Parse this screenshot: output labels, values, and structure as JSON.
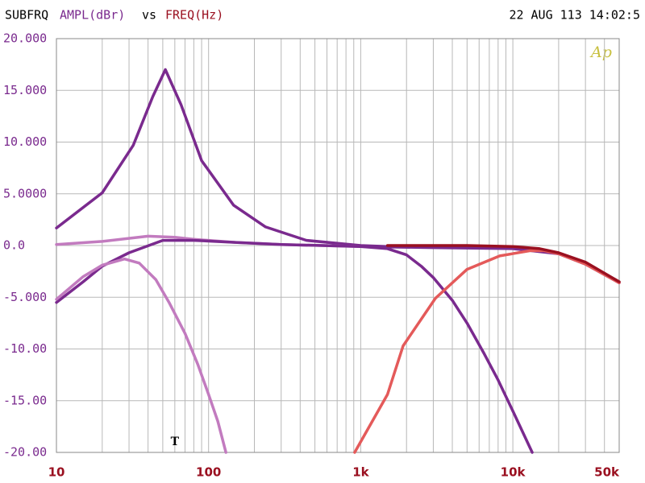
{
  "chart_data": {
    "type": "line",
    "title": "SUBFRQ",
    "ylabel": "AMPL(dBr)",
    "title_sep": "vs",
    "xlabel": "FREQ(Hz)",
    "timestamp": "22 AUG 113 14:02:5",
    "logo": "Ap",
    "annotation": {
      "text": "T",
      "x": 60,
      "y": -19.6
    },
    "xscale": "log",
    "grid": true,
    "xlim": [
      10,
      50000
    ],
    "ylim": [
      -20,
      20
    ],
    "xticks": [
      10,
      100,
      {
        "value": 1000,
        "label": "1k"
      },
      {
        "value": 10000,
        "label": "10k"
      },
      {
        "value": 50000,
        "label": "50k"
      }
    ],
    "xminorticks": [
      20,
      30,
      40,
      50,
      60,
      70,
      80,
      90,
      200,
      300,
      400,
      500,
      600,
      700,
      800,
      900,
      2000,
      3000,
      4000,
      5000,
      6000,
      7000,
      8000,
      9000,
      20000,
      30000,
      40000
    ],
    "yticks": [
      {
        "value": 20,
        "label": "20.000"
      },
      {
        "value": 15,
        "label": "15.000"
      },
      {
        "value": 10,
        "label": "10.000"
      },
      {
        "value": 5,
        "label": "5.0000"
      },
      {
        "value": 0,
        "label": "0.0"
      },
      {
        "value": -5,
        "label": "-5.000"
      },
      {
        "value": -10,
        "label": "-10.00"
      },
      {
        "value": -15,
        "label": "-15.00"
      },
      {
        "value": -20,
        "label": "-20.00"
      }
    ],
    "series": [
      {
        "color": "#7a2a8e",
        "x": [
          10,
          20,
          32,
          43,
          52,
          66,
          90,
          146,
          237,
          440,
          1000,
          1500
        ],
        "values": [
          1.7,
          5.1,
          9.7,
          14.4,
          17,
          13.6,
          8.2,
          3.9,
          1.8,
          0.5,
          0,
          -0.1
        ]
      },
      {
        "color": "#c27bbf",
        "x": [
          10,
          20,
          40,
          60,
          80,
          150,
          300,
          1000
        ],
        "values": [
          0.1,
          0.4,
          0.9,
          0.8,
          0.6,
          0.3,
          0.1,
          -0.1
        ]
      },
      {
        "color": "#7a2a8e",
        "x": [
          10,
          15,
          20,
          30,
          50,
          80,
          150,
          300,
          1000,
          3000,
          10000,
          20000,
          30000,
          50000
        ],
        "values": [
          -5.5,
          -3.5,
          -2,
          -0.7,
          0.5,
          0.5,
          0.3,
          0.1,
          -0.1,
          -0.2,
          -0.3,
          -0.8,
          -1.8,
          -3.6
        ]
      },
      {
        "color": "#c27bbf",
        "x": [
          10,
          15,
          20,
          28,
          35,
          45,
          55,
          70,
          85,
          100,
          115,
          130
        ],
        "values": [
          -5.2,
          -3,
          -1.9,
          -1.3,
          -1.7,
          -3.3,
          -5.5,
          -8.5,
          -11.5,
          -14.4,
          -17,
          -20
        ]
      },
      {
        "color": "#7a2a8e",
        "x": [
          1000,
          1500,
          2000,
          2500,
          3000,
          4000,
          5000,
          6500,
          8000,
          10000,
          13400
        ],
        "values": [
          -0.1,
          -0.3,
          -0.9,
          -2,
          -3.1,
          -5.3,
          -7.5,
          -10.5,
          -13,
          -16,
          -20
        ]
      },
      {
        "color": "#e45a5a",
        "x": [
          912,
          1500,
          1900,
          3100,
          5000,
          8200,
          13000,
          16000,
          20000,
          30000,
          50000
        ],
        "values": [
          -20,
          -14.4,
          -9.7,
          -5.1,
          -2.3,
          -1,
          -0.5,
          -0.5,
          -0.8,
          -1.8,
          -3.6
        ]
      },
      {
        "color": "#9a1020",
        "x": [
          1500,
          5000,
          10000,
          15000,
          20000,
          30000,
          50000
        ],
        "values": [
          0,
          0,
          -0.1,
          -0.3,
          -0.7,
          -1.6,
          -3.5
        ]
      }
    ]
  }
}
